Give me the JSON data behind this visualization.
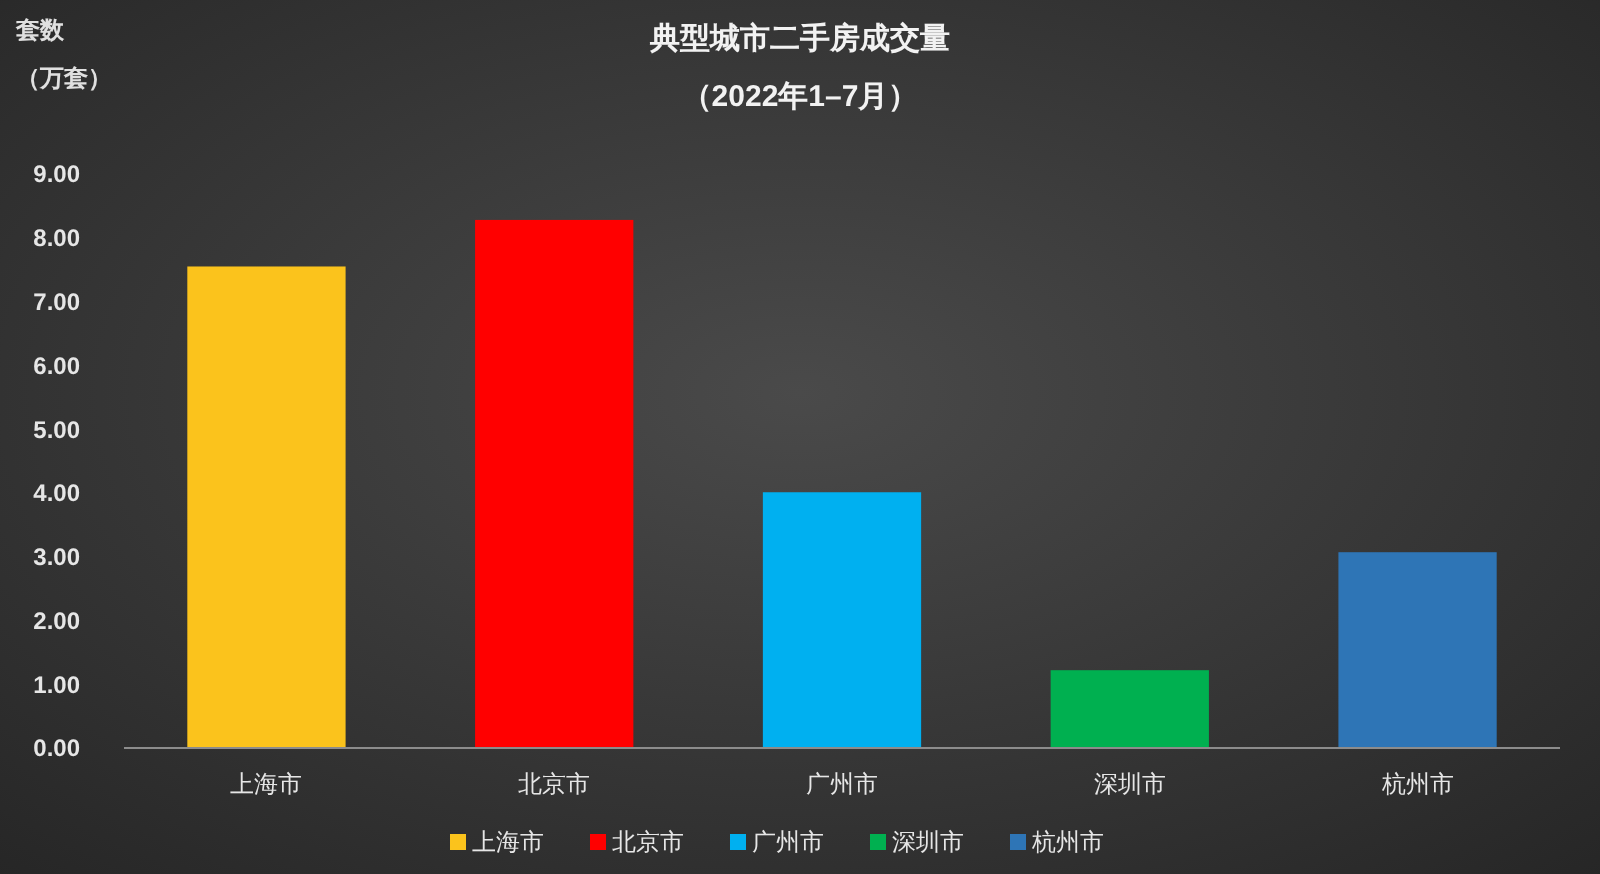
{
  "chart_data": {
    "type": "bar",
    "title": "典型城市二手房成交量",
    "subtitle": "（2022年1–7月）",
    "ylabel": "套数",
    "annotations": [
      "（万套）"
    ],
    "categories": [
      "上海市",
      "北京市",
      "广州市",
      "深圳市",
      "杭州市"
    ],
    "series": [
      {
        "name": "上海市",
        "color": "#fbc31c",
        "values": [
          7.55,
          null,
          null,
          null,
          null
        ]
      },
      {
        "name": "北京市",
        "color": "#ff0000",
        "values": [
          null,
          8.28,
          null,
          null,
          null
        ]
      },
      {
        "name": "广州市",
        "color": "#00b0f0",
        "values": [
          null,
          null,
          4.01,
          null,
          null
        ]
      },
      {
        "name": "深圳市",
        "color": "#00b050",
        "values": [
          null,
          null,
          null,
          1.22,
          null
        ]
      },
      {
        "name": "杭州市",
        "color": "#2e75b6",
        "values": [
          null,
          null,
          null,
          null,
          3.07
        ]
      }
    ],
    "ylim": [
      0,
      9
    ],
    "yticks": [
      {
        "value": 0,
        "label": "0.00"
      },
      {
        "value": 1,
        "label": "1.00"
      },
      {
        "value": 2,
        "label": "2.00"
      },
      {
        "value": 3,
        "label": "3.00"
      },
      {
        "value": 4,
        "label": "4.00"
      },
      {
        "value": 5,
        "label": "5.00"
      },
      {
        "value": 6,
        "label": "6.00"
      },
      {
        "value": 7,
        "label": "7.00"
      },
      {
        "value": 8,
        "label": "8.00"
      },
      {
        "value": 9,
        "label": "9.00"
      }
    ],
    "legend": "bottom"
  }
}
